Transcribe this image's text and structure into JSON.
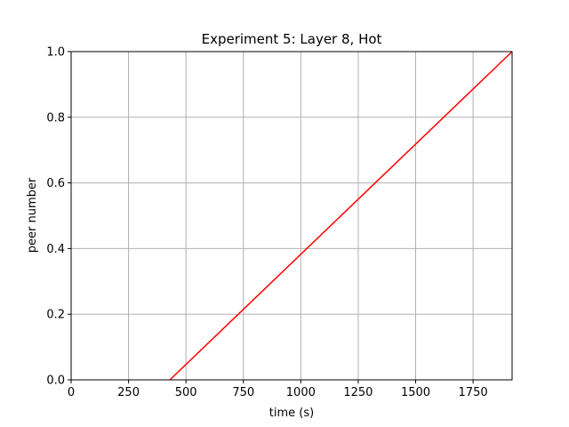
{
  "chart_data": {
    "type": "line",
    "title": "Experiment 5: Layer 8, Hot",
    "xlabel": "time (s)",
    "ylabel": "peer number",
    "xlim": [
      0,
      1920
    ],
    "ylim": [
      0.0,
      1.0
    ],
    "xticks": [
      0,
      250,
      500,
      750,
      1000,
      1250,
      1500,
      1750
    ],
    "xtick_labels": [
      "0",
      "250",
      "500",
      "750",
      "1000",
      "1250",
      "1500",
      "1750"
    ],
    "yticks": [
      0.0,
      0.2,
      0.4,
      0.6,
      0.8,
      1.0
    ],
    "ytick_labels": [
      "0.0",
      "0.2",
      "0.4",
      "0.6",
      "0.8",
      "1.0"
    ],
    "grid": true,
    "series": [
      {
        "color": "#ff0000",
        "x": [
          430,
          1920
        ],
        "y": [
          0.0,
          1.0
        ]
      }
    ]
  }
}
